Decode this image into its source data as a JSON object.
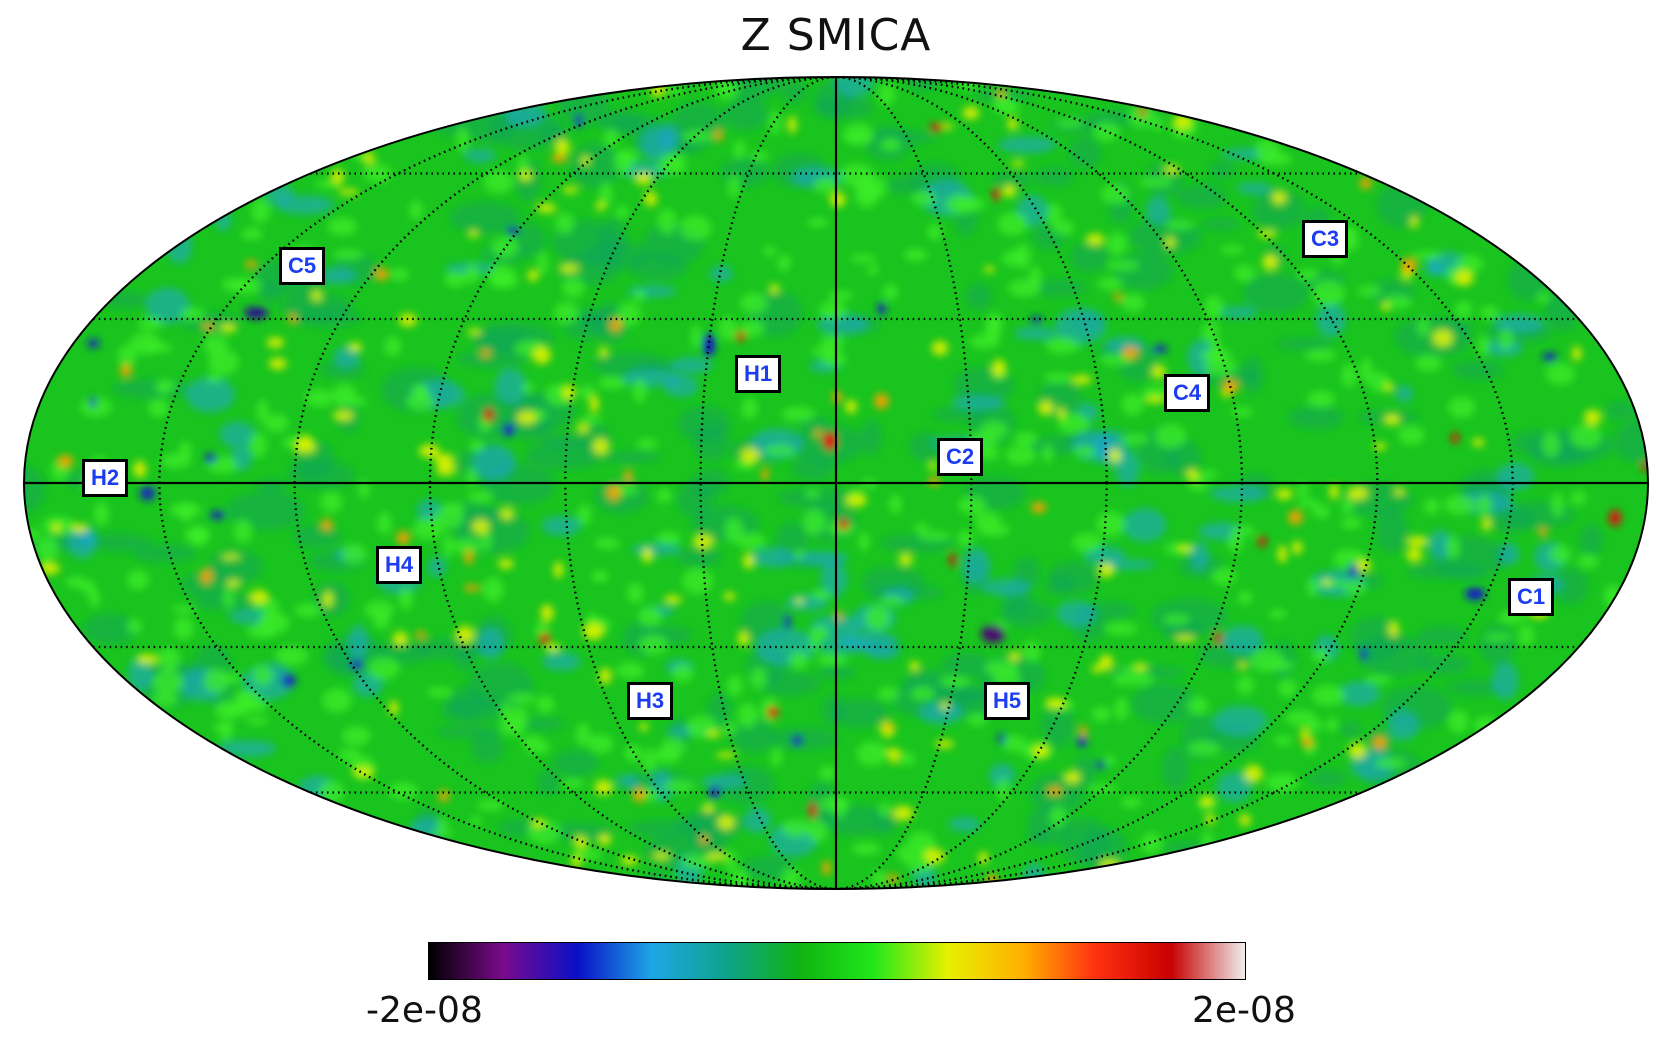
{
  "title": "Z SMICA",
  "colorbar": {
    "min_label": "-2e-08",
    "max_label": "2e-08",
    "colors": [
      "#000000",
      "#7a0a8c",
      "#0a10c8",
      "#1ea6e6",
      "#0da38c",
      "#0fb410",
      "#22e81a",
      "#e6f000",
      "#ffb000",
      "#ff3010",
      "#c80000",
      "#eeeeee"
    ]
  },
  "map": {
    "projection": "mollweide",
    "background_color": "#19c41e",
    "graticule": "dotted",
    "regions": [
      {
        "label": "C1",
        "color": "#1c3cf0"
      },
      {
        "label": "C2",
        "color": "#1c3cf0"
      },
      {
        "label": "C3",
        "color": "#1c3cf0"
      },
      {
        "label": "C4",
        "color": "#1c3cf0"
      },
      {
        "label": "C5",
        "color": "#1c3cf0"
      },
      {
        "label": "H1",
        "color": "#1c3cf0"
      },
      {
        "label": "H2",
        "color": "#1c3cf0"
      },
      {
        "label": "H3",
        "color": "#1c3cf0"
      },
      {
        "label": "H4",
        "color": "#1c3cf0"
      },
      {
        "label": "H5",
        "color": "#1c3cf0"
      }
    ]
  }
}
